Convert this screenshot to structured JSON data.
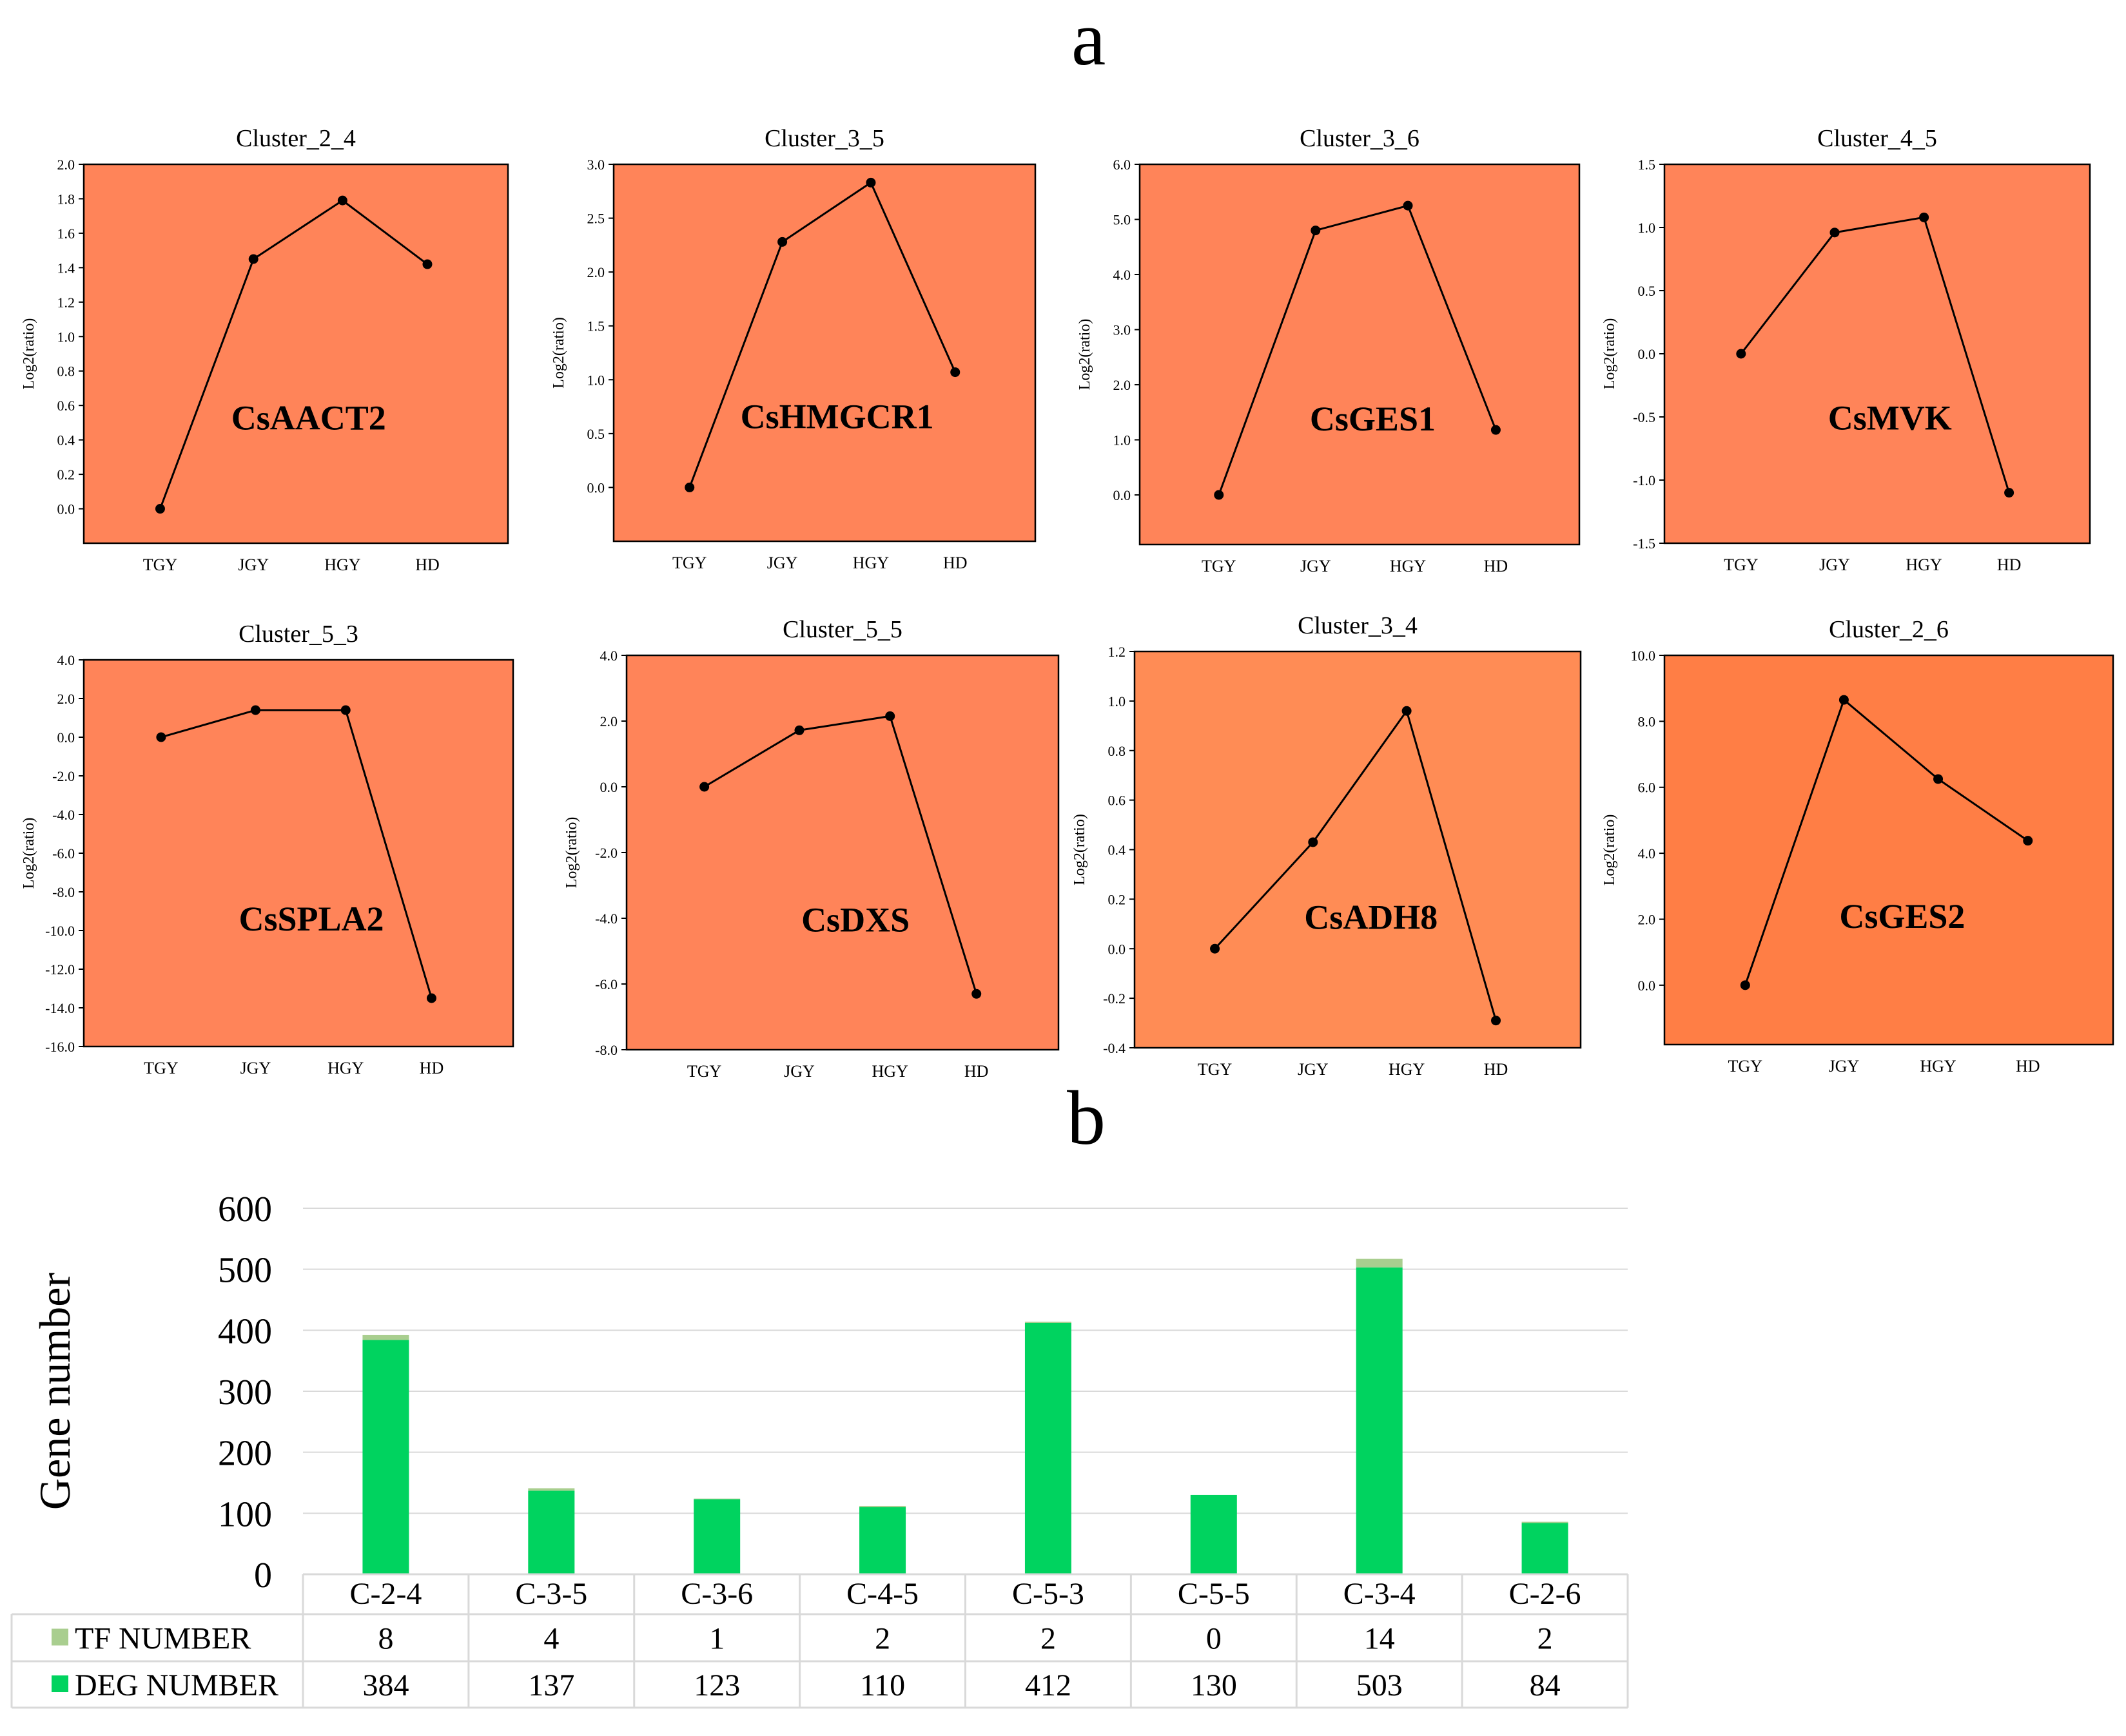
{
  "panel_labels": {
    "a": "a",
    "b": "b"
  },
  "colors": {
    "panel_fill": "#FF8459",
    "panel_fill_light": "#FF8C55",
    "panel_fill_dark": "#FF7E45",
    "line": "#000000",
    "deg_bar": "#00D35F",
    "tf_bar": "#A9CE8F",
    "grid": "#D9D9D9"
  },
  "chart_data": [
    {
      "type": "line",
      "title": "Cluster_2_4",
      "gene": "CsAACT2",
      "ylabel": "Log2(ratio)",
      "categories": [
        "TGY",
        "JGY",
        "HGY",
        "HD"
      ],
      "values": [
        0.0,
        1.45,
        1.79,
        1.42
      ],
      "ylim": [
        -0.2,
        2.0
      ],
      "yticks": [
        "0.0",
        "0.2",
        "0.4",
        "0.6",
        "0.8",
        "1.0",
        "1.2",
        "1.4",
        "1.6",
        "1.8",
        "2.0"
      ],
      "tone": "normal"
    },
    {
      "type": "line",
      "title": "Cluster_3_5",
      "gene": "CsHMGCR1",
      "ylabel": "Log2(ratio)",
      "categories": [
        "TGY",
        "JGY",
        "HGY",
        "HD"
      ],
      "values": [
        0.0,
        2.28,
        2.83,
        1.07
      ],
      "ylim": [
        -0.5,
        3.0
      ],
      "yticks": [
        "0.0",
        "0.5",
        "1.0",
        "1.5",
        "2.0",
        "2.5",
        "3.0"
      ],
      "tone": "normal"
    },
    {
      "type": "line",
      "title": "Cluster_3_6",
      "gene": "CsGES1",
      "ylabel": "Log2(ratio)",
      "categories": [
        "TGY",
        "JGY",
        "HGY",
        "HD"
      ],
      "values": [
        0.0,
        4.8,
        5.25,
        1.18
      ],
      "ylim": [
        -0.9,
        6.0
      ],
      "yticks": [
        "0.0",
        "1.0",
        "2.0",
        "3.0",
        "4.0",
        "5.0",
        "6.0"
      ],
      "tone": "normal"
    },
    {
      "type": "line",
      "title": "Cluster_4_5",
      "gene": "CsMVK",
      "ylabel": "Log2(ratio)",
      "categories": [
        "TGY",
        "JGY",
        "HGY",
        "HD"
      ],
      "values": [
        0.0,
        0.96,
        1.08,
        -1.1
      ],
      "ylim": [
        -1.5,
        1.5
      ],
      "yticks": [
        "-1.5",
        "-1.0",
        "-0.5",
        "0.0",
        "0.5",
        "1.0",
        "1.5"
      ],
      "tone": "normal"
    },
    {
      "type": "line",
      "title": "Cluster_5_3",
      "gene": "CsSPLA2",
      "ylabel": "Log2(ratio)",
      "categories": [
        "TGY",
        "JGY",
        "HGY",
        "HD"
      ],
      "values": [
        0.0,
        1.4,
        1.4,
        -13.5
      ],
      "ylim": [
        -16.0,
        4.0
      ],
      "yticks": [
        "-16.0",
        "-14.0",
        "-12.0",
        "-10.0",
        "-8.0",
        "-6.0",
        "-4.0",
        "-2.0",
        "0.0",
        "2.0",
        "4.0"
      ],
      "tone": "normal"
    },
    {
      "type": "line",
      "title": "Cluster_5_5",
      "gene": "CsDXS",
      "ylabel": "Log2(ratio)",
      "categories": [
        "TGY",
        "JGY",
        "HGY",
        "HD"
      ],
      "values": [
        0.0,
        1.72,
        2.15,
        -6.3
      ],
      "ylim": [
        -8.0,
        4.0
      ],
      "yticks": [
        "-8.0",
        "-6.0",
        "-4.0",
        "-2.0",
        "0.0",
        "2.0",
        "4.0"
      ],
      "tone": "normal"
    },
    {
      "type": "line",
      "title": "Cluster_3_4",
      "gene": "CsADH8",
      "ylabel": "Log2(ratio)",
      "categories": [
        "TGY",
        "JGY",
        "HGY",
        "HD"
      ],
      "values": [
        0.0,
        0.43,
        0.96,
        -0.29
      ],
      "ylim": [
        -0.4,
        1.2
      ],
      "yticks": [
        "-0.4",
        "-0.2",
        "0.0",
        "0.2",
        "0.4",
        "0.6",
        "0.8",
        "1.0",
        "1.2"
      ],
      "tone": "light"
    },
    {
      "type": "line",
      "title": "Cluster_2_6",
      "gene": "CsGES2",
      "ylabel": "Log2(ratio)",
      "categories": [
        "TGY",
        "JGY",
        "HGY",
        "HD"
      ],
      "values": [
        0.0,
        8.65,
        6.25,
        4.38
      ],
      "ylim": [
        -1.8,
        10.0
      ],
      "yticks": [
        "0.0",
        "2.0",
        "4.0",
        "6.0",
        "8.0",
        "10.0"
      ],
      "tone": "dark"
    },
    {
      "type": "bar",
      "stacked": true,
      "ylabel": "Gene number",
      "ylim": [
        0,
        600
      ],
      "yticks": [
        "0",
        "100",
        "200",
        "300",
        "400",
        "500",
        "600"
      ],
      "categories": [
        "C-2-4",
        "C-3-5",
        "C-3-6",
        "C-4-5",
        "C-5-3",
        "C-5-5",
        "C-3-4",
        "C-2-6"
      ],
      "series": [
        {
          "name": "DEG NUMBER",
          "values": [
            384,
            137,
            123,
            110,
            412,
            130,
            503,
            84
          ]
        },
        {
          "name": "TF NUMBER",
          "values": [
            8,
            4,
            1,
            2,
            2,
            0,
            14,
            2
          ]
        }
      ],
      "grid": true,
      "legend": "table-below"
    }
  ]
}
